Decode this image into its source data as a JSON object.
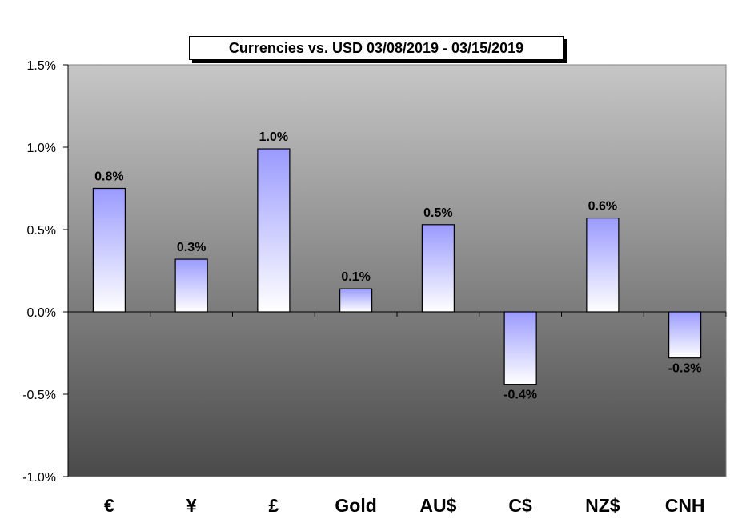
{
  "chart_data": {
    "type": "bar",
    "title": "Currencies vs. USD 03/08/2019 - 03/15/2019",
    "categories": [
      "€",
      "¥",
      "£",
      "Gold",
      "AU$",
      "C$",
      "NZ$",
      "CNH"
    ],
    "values": [
      0.75,
      0.32,
      0.99,
      0.14,
      0.53,
      -0.44,
      0.57,
      -0.28
    ],
    "data_labels": [
      "0.8%",
      "0.3%",
      "1.0%",
      "0.1%",
      "0.5%",
      "-0.4%",
      "0.6%",
      "-0.3%"
    ],
    "ylim": [
      -1.0,
      1.5
    ],
    "yticks": [
      -1.0,
      -0.5,
      0.0,
      0.5,
      1.0,
      1.5
    ],
    "ytick_labels": [
      "-1.0%",
      "-0.5%",
      "0.0%",
      "0.5%",
      "1.0%",
      "1.5%"
    ],
    "xlabel": "",
    "ylabel": "",
    "grid": false,
    "legend": "none",
    "colors": {
      "plot_top": "#c6c6c6",
      "plot_bottom": "#4a4a4a",
      "bar_top": "#9a9aff",
      "bar_bottom": "#ffffff",
      "axis": "#000000"
    }
  }
}
